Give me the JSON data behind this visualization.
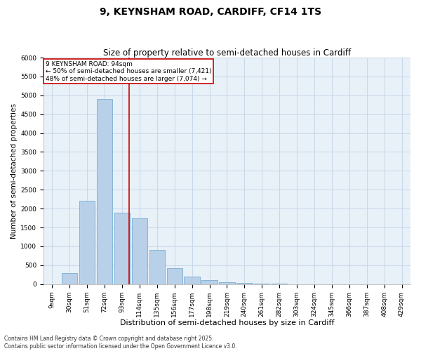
{
  "title": "9, KEYNSHAM ROAD, CARDIFF, CF14 1TS",
  "subtitle": "Size of property relative to semi-detached houses in Cardiff",
  "xlabel": "Distribution of semi-detached houses by size in Cardiff",
  "ylabel": "Number of semi-detached properties",
  "categories": [
    "9sqm",
    "30sqm",
    "51sqm",
    "72sqm",
    "93sqm",
    "114sqm",
    "135sqm",
    "156sqm",
    "177sqm",
    "198sqm",
    "219sqm",
    "240sqm",
    "261sqm",
    "282sqm",
    "303sqm",
    "324sqm",
    "345sqm",
    "366sqm",
    "387sqm",
    "408sqm",
    "429sqm"
  ],
  "values": [
    0,
    300,
    2200,
    4900,
    1900,
    1750,
    900,
    420,
    200,
    100,
    50,
    30,
    10,
    5,
    0,
    0,
    0,
    0,
    0,
    0,
    0
  ],
  "bar_color": "#b8d0e8",
  "bar_edge_color": "#7aafd4",
  "vline_color": "#cc0000",
  "vline_x_index": 4,
  "annotation_line1": "9 KEYNSHAM ROAD: 94sqm",
  "annotation_line2": "← 50% of semi-detached houses are smaller (7,421)",
  "annotation_line3": "48% of semi-detached houses are larger (7,074) →",
  "annotation_box_color": "#cc0000",
  "ylim": [
    0,
    6000
  ],
  "yticks": [
    0,
    500,
    1000,
    1500,
    2000,
    2500,
    3000,
    3500,
    4000,
    4500,
    5000,
    5500,
    6000
  ],
  "grid_color": "#c8d8e8",
  "background_color": "#e8f0f8",
  "footer_text": "Contains HM Land Registry data © Crown copyright and database right 2025.\nContains public sector information licensed under the Open Government Licence v3.0.",
  "title_fontsize": 10,
  "subtitle_fontsize": 8.5,
  "xlabel_fontsize": 8,
  "ylabel_fontsize": 7.5,
  "tick_fontsize": 6.5,
  "annotation_fontsize": 6.5,
  "footer_fontsize": 5.5
}
